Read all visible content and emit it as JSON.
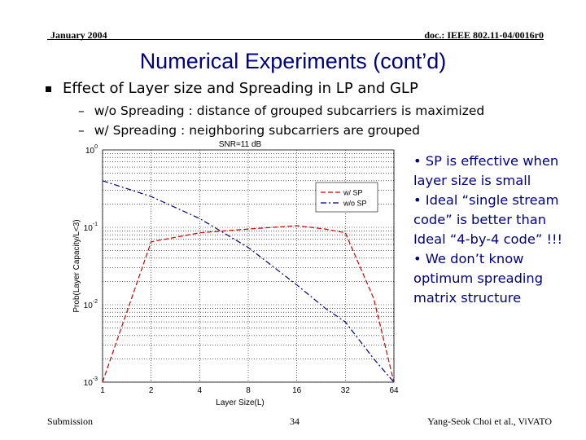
{
  "header": {
    "date": "January 2004",
    "doc": "doc.: IEEE 802.11-04/0016r0"
  },
  "slide": {
    "title": "Numerical Experiments (cont’d)",
    "bullet": "Effect of Layer size and Spreading in LP and GLP",
    "subbullets": [
      "w/o Spreading : distance of grouped subcarriers is maximized",
      "w/ Spreading : neighboring subcarriers are grouped"
    ],
    "notes": [
      "• SP is effective when layer size is small",
      "• Ideal “single stream code” is better than Ideal “4-by-4 code” !!!",
      "• We don’t know optimum spreading matrix structure"
    ]
  },
  "footer": {
    "left": "Submission",
    "page": "34",
    "author": "Yang-Seok Choi et al., ViVATO"
  },
  "colors": {
    "title": "#000080",
    "notes": "#000080",
    "series_sp": "#cc0000",
    "series_wo": "#00007a"
  },
  "chart_data": {
    "type": "line",
    "title": "SNR=11 dB",
    "xlabel": "Layer Size(L)",
    "ylabel": "Prob(Layer Capacity/L<3)",
    "x": [
      1,
      2,
      4,
      8,
      16,
      32,
      64
    ],
    "x_ticks": [
      "1",
      "2",
      "4",
      "8",
      "16",
      "32",
      "64"
    ],
    "xscale": "log2",
    "yscale": "log",
    "ylim": [
      0.001,
      1
    ],
    "y_ticks": [
      {
        "base": "10",
        "exp": "0"
      },
      {
        "base": "10",
        "exp": "-1"
      },
      {
        "base": "10",
        "exp": "-2"
      },
      {
        "base": "10",
        "exp": "-3"
      }
    ],
    "grid": true,
    "legend_position": "top-right",
    "series": [
      {
        "name": "w/ SP",
        "color": "#cc0000",
        "style": "dashed",
        "x": [
          1,
          2,
          4,
          8,
          16,
          24,
          32,
          48,
          64
        ],
        "y": [
          0.001,
          0.065,
          0.085,
          0.095,
          0.105,
          0.095,
          0.085,
          0.012,
          0.001
        ]
      },
      {
        "name": "w/o SP",
        "color": "#00007a",
        "style": "dashdot",
        "x": [
          1,
          2,
          4,
          8,
          16,
          24,
          32,
          48,
          64
        ],
        "y": [
          0.4,
          0.25,
          0.13,
          0.055,
          0.018,
          0.009,
          0.006,
          0.002,
          0.001
        ]
      }
    ]
  }
}
